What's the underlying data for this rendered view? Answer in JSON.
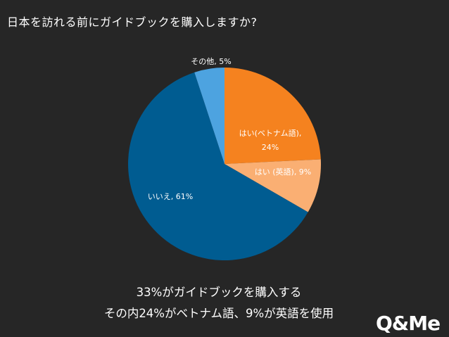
{
  "title": "日本を訪れる前にガイドブックを購入しますか?",
  "chart_data": {
    "type": "pie",
    "title": "日本を訪れる前にガイドブックを購入しますか?",
    "slices": [
      {
        "label": "はい(ベトナム語),",
        "label_line2": "24%",
        "value": 24,
        "color": "#F5821F",
        "text_color": "#ffffff"
      },
      {
        "label": "はい (英語), 9%",
        "value": 9,
        "color": "#FAAF73",
        "text_color": "#ffffff"
      },
      {
        "label": "いいえ, 61%",
        "value": 61,
        "color": "#005C91",
        "text_color": "#ffffff"
      },
      {
        "label": "その他, 5%",
        "value": 5,
        "color": "#4DA3E0",
        "text_color": "#ffffff"
      }
    ],
    "start_angle_deg": 0,
    "direction": "clockwise",
    "legend": "none"
  },
  "captions": {
    "line1": "33%がガイドブックを購入する",
    "line2": "その内24%がベトナム語、9%が英語を使用"
  },
  "logo": {
    "text": "Q&Me"
  }
}
